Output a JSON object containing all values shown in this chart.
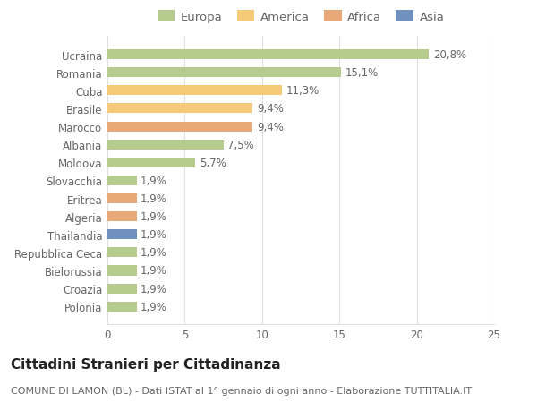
{
  "categories": [
    "Polonia",
    "Croazia",
    "Bielorussia",
    "Repubblica Ceca",
    "Thailandia",
    "Algeria",
    "Eritrea",
    "Slovacchia",
    "Moldova",
    "Albania",
    "Marocco",
    "Brasile",
    "Cuba",
    "Romania",
    "Ucraina"
  ],
  "values": [
    1.9,
    1.9,
    1.9,
    1.9,
    1.9,
    1.9,
    1.9,
    1.9,
    5.7,
    7.5,
    9.4,
    9.4,
    11.3,
    15.1,
    20.8
  ],
  "labels": [
    "1,9%",
    "1,9%",
    "1,9%",
    "1,9%",
    "1,9%",
    "1,9%",
    "1,9%",
    "1,9%",
    "5,7%",
    "7,5%",
    "9,4%",
    "9,4%",
    "11,3%",
    "15,1%",
    "20,8%"
  ],
  "colors": [
    "#b5cc8e",
    "#b5cc8e",
    "#b5cc8e",
    "#b5cc8e",
    "#7090c0",
    "#e8a878",
    "#e8a878",
    "#b5cc8e",
    "#b5cc8e",
    "#b5cc8e",
    "#e8a878",
    "#f5cb7a",
    "#f5cb7a",
    "#b5cc8e",
    "#b5cc8e"
  ],
  "legend_labels": [
    "Europa",
    "America",
    "Africa",
    "Asia"
  ],
  "legend_colors": [
    "#b5cc8e",
    "#f5cb7a",
    "#e8a878",
    "#7090c0"
  ],
  "title": "Cittadini Stranieri per Cittadinanza",
  "subtitle": "COMUNE DI LAMON (BL) - Dati ISTAT al 1° gennaio di ogni anno - Elaborazione TUTTITALIA.IT",
  "xlim": [
    0,
    25
  ],
  "xticks": [
    0,
    5,
    10,
    15,
    20,
    25
  ],
  "background_color": "#ffffff",
  "grid_color": "#e0e0e0",
  "bar_height": 0.55,
  "label_fontsize": 8.5,
  "title_fontsize": 11,
  "subtitle_fontsize": 8,
  "tick_fontsize": 8.5,
  "legend_fontsize": 9.5
}
